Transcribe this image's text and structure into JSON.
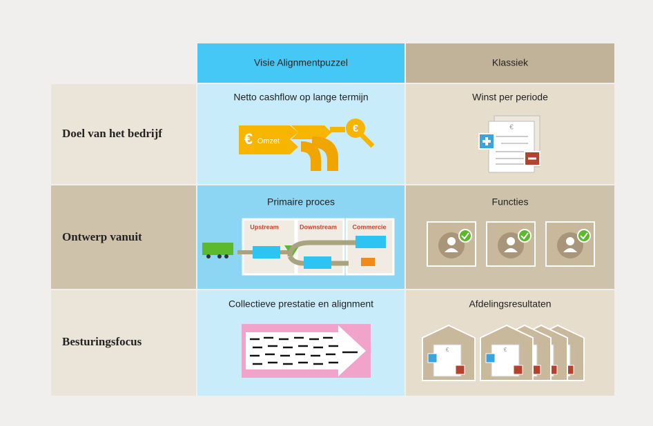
{
  "header": {
    "columns": [
      "Visie Alignmentpuzzel",
      "Klassiek"
    ]
  },
  "rows": [
    {
      "label": "Doel van het bedrijf",
      "cells": [
        "Netto cashflow op lange termijn",
        "Winst per periode"
      ],
      "icon_texts": {
        "omzet": "Omzet",
        "euro": "€"
      }
    },
    {
      "label": "Ontwerp vanuit",
      "cells": [
        "Primaire proces",
        "Functies"
      ],
      "stages": [
        "Upstream",
        "Downstream",
        "Commercie"
      ]
    },
    {
      "label": "Besturingsfocus",
      "cells": [
        "Collectieve prestatie en alignment",
        "Afdelingsresultaten"
      ]
    }
  ]
}
